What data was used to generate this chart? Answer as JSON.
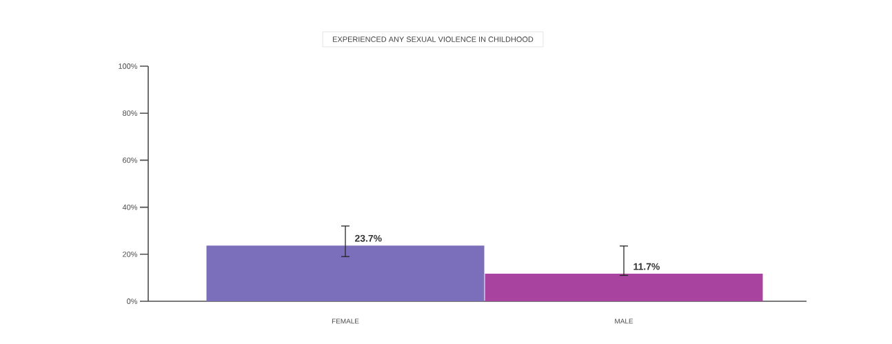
{
  "chart_data": {
    "type": "bar",
    "title": "EXPERIENCED ANY SEXUAL VIOLENCE IN CHILDHOOD",
    "categories": [
      "FEMALE",
      "MALE"
    ],
    "values": [
      23.7,
      11.7
    ],
    "colors": [
      "#7b6fbb",
      "#a8449f"
    ],
    "errors": [
      [
        19,
        32
      ],
      [
        11,
        23.5
      ]
    ],
    "value_labels": [
      "23.7%",
      "11.7%"
    ],
    "ylim": [
      0,
      100
    ],
    "yticks": [
      {
        "value": 0,
        "label": "0%"
      },
      {
        "value": 20,
        "label": "20%"
      },
      {
        "value": 40,
        "label": "40%"
      },
      {
        "value": 60,
        "label": "60%"
      },
      {
        "value": 80,
        "label": "80%"
      },
      {
        "value": 100,
        "label": "100%"
      }
    ],
    "grid": false
  }
}
